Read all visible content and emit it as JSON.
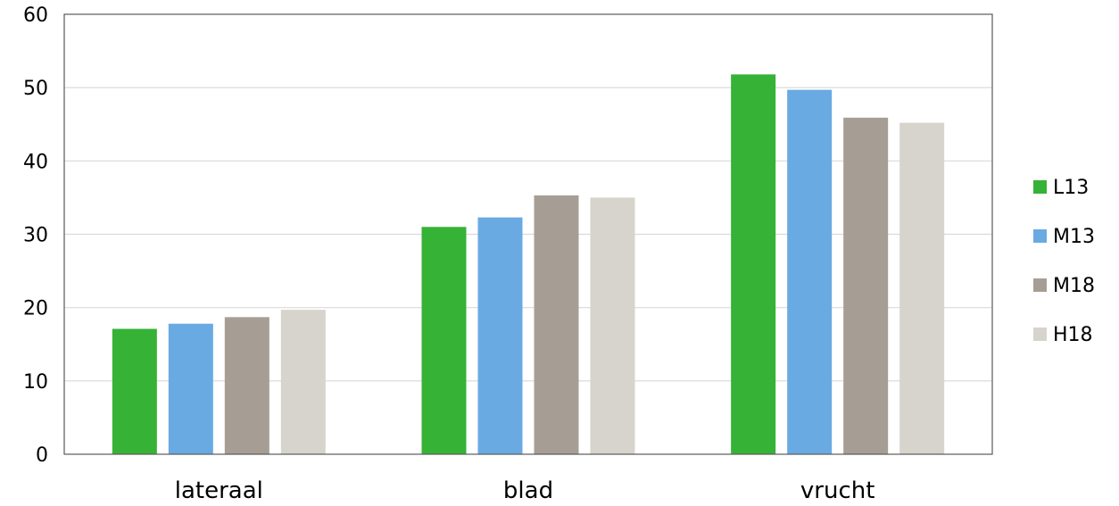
{
  "chart_data": {
    "type": "bar",
    "title": "",
    "xlabel": "",
    "ylabel": "",
    "categories": [
      "lateraal",
      "blad",
      "vrucht"
    ],
    "series": [
      {
        "name": "L13",
        "color": "#36b236",
        "values": [
          17.1,
          31.0,
          51.8
        ]
      },
      {
        "name": "M13",
        "color": "#6aaae2",
        "values": [
          17.8,
          32.3,
          49.7
        ]
      },
      {
        "name": "M18",
        "color": "#a69e94",
        "values": [
          18.7,
          35.3,
          45.9
        ]
      },
      {
        "name": "H18",
        "color": "#d6d4cc",
        "values": [
          19.7,
          35.0,
          45.2
        ]
      }
    ],
    "ylim": [
      0,
      60
    ],
    "yticks": [
      0,
      10,
      20,
      30,
      40,
      50,
      60
    ],
    "grid": true,
    "legend_position": "right"
  }
}
